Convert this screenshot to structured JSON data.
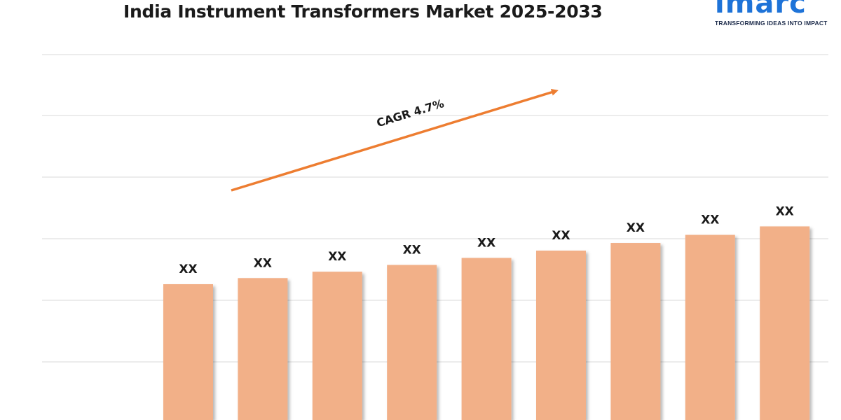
{
  "chart_data": {
    "type": "bar",
    "title": "India Instrument Transformers Market 2025-2033",
    "categories": [
      "",
      "",
      "",
      "",
      "",
      "",
      "",
      "",
      ""
    ],
    "values": [
      1.0,
      1.047,
      1.096,
      1.148,
      1.202,
      1.258,
      1.317,
      1.379,
      1.444
    ],
    "data_labels": [
      "XX",
      "XX",
      "XX",
      "XX",
      "XX",
      "XX",
      "XX",
      "XX",
      "XX"
    ],
    "annotation": "CAGR 4.7%",
    "bar_color": "#f2b088",
    "arrow_color": "#ed7d31",
    "grid": true,
    "legend": "none",
    "xlabel": "",
    "ylabel": ""
  },
  "logo": {
    "text": "imarc",
    "tagline": "TRANSFORMING IDEAS INTO IMPACT",
    "color": "#1e73d8"
  }
}
